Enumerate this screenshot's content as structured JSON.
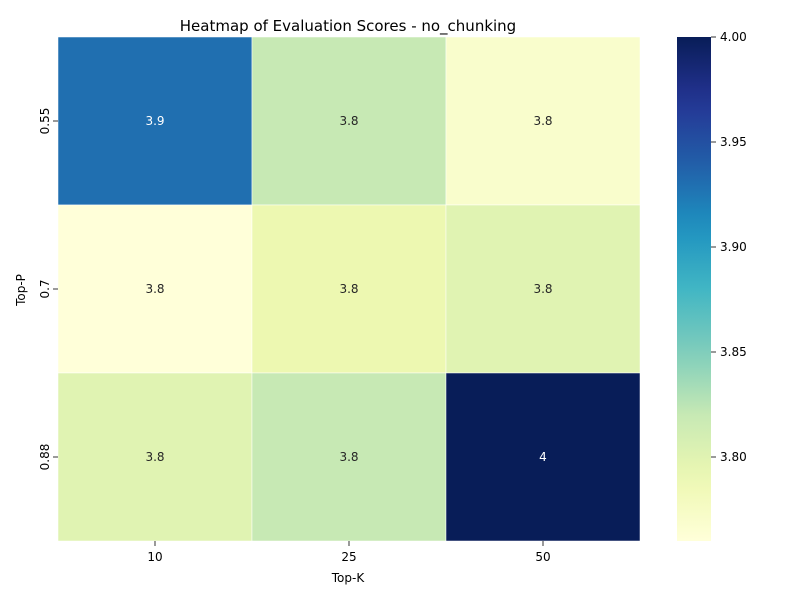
{
  "chart_data": {
    "type": "heatmap",
    "title": "Heatmap of Evaluation Scores - no_chunking",
    "xlabel": "Top-K",
    "ylabel": "Top-P",
    "x_categories": [
      "10",
      "25",
      "50"
    ],
    "y_categories": [
      "0.55",
      "0.7",
      "0.88"
    ],
    "values": [
      [
        3.93,
        3.82,
        3.77
      ],
      [
        3.76,
        3.79,
        3.8
      ],
      [
        3.8,
        3.82,
        4.0
      ]
    ],
    "cell_labels": [
      [
        "3.9",
        "3.8",
        "3.8"
      ],
      [
        "3.8",
        "3.8",
        "3.8"
      ],
      [
        "3.8",
        "3.8",
        "4"
      ]
    ],
    "colorbar": {
      "min": 3.76,
      "max": 4.0,
      "ticks": [
        "3.80",
        "3.85",
        "3.90",
        "3.95",
        "4.00"
      ],
      "colormap": "YlGnBu"
    },
    "grid": false
  }
}
